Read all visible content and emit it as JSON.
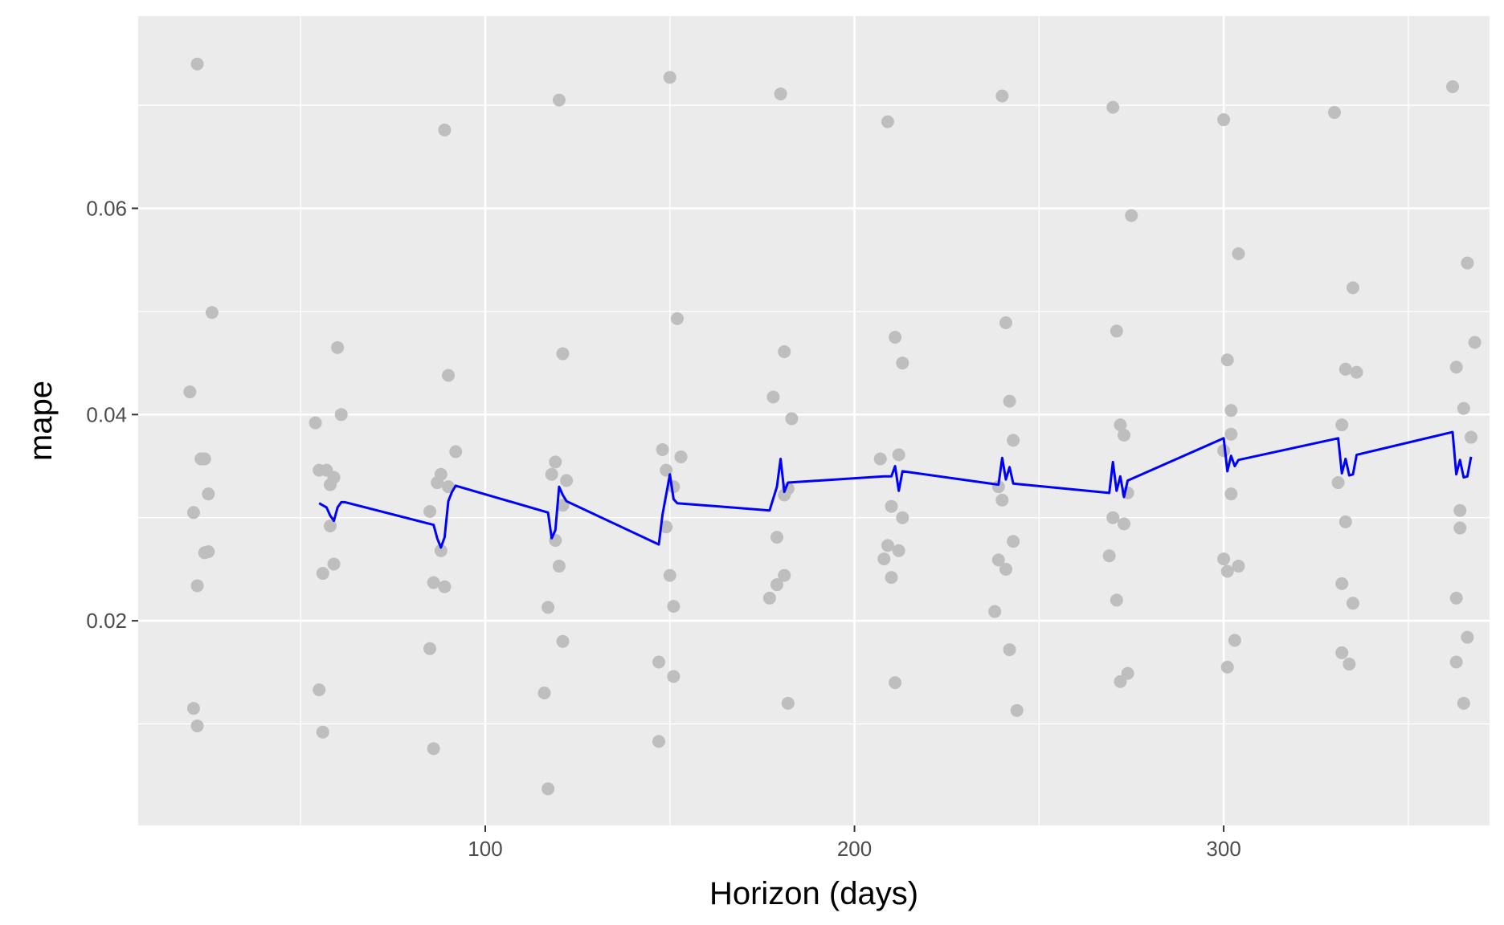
{
  "chart_data": {
    "type": "scatter",
    "title": "",
    "xlabel": "Horizon (days)",
    "ylabel": "mape",
    "xlim": [
      6,
      372
    ],
    "ylim": [
      0.00015,
      0.07865
    ],
    "x_ticks": [
      100,
      200,
      300
    ],
    "x_minor": [
      50,
      150,
      250,
      350
    ],
    "y_ticks": [
      0.02,
      0.04,
      0.06
    ],
    "y_minor": [
      0.01,
      0.03,
      0.05,
      0.07
    ],
    "x_tick_labels": [
      "100",
      "200",
      "300"
    ],
    "y_tick_labels": [
      "0.02",
      "0.04",
      "0.06"
    ],
    "grid": true,
    "legend": "none",
    "colors": {
      "panel": "#ebebeb",
      "grid": "#ffffff",
      "points": "#bebebe",
      "line": "#0000ff",
      "tick_text": "#4d4d4d",
      "title_text": "#000000"
    },
    "series": [
      {
        "kind": "points",
        "values": [
          [
            20,
            0.0422
          ],
          [
            21,
            0.0305
          ],
          [
            21,
            0.0115
          ],
          [
            22,
            0.074
          ],
          [
            22,
            0.0234
          ],
          [
            22,
            0.0098
          ],
          [
            23,
            0.0357
          ],
          [
            24,
            0.0357
          ],
          [
            24,
            0.0266
          ],
          [
            25,
            0.0323
          ],
          [
            25,
            0.0267
          ],
          [
            26,
            0.0499
          ],
          [
            54,
            0.0392
          ],
          [
            55,
            0.0346
          ],
          [
            55,
            0.0133
          ],
          [
            56,
            0.0246
          ],
          [
            56,
            0.0092
          ],
          [
            57,
            0.0346
          ],
          [
            58,
            0.0332
          ],
          [
            58,
            0.0292
          ],
          [
            59,
            0.0255
          ],
          [
            59,
            0.0339
          ],
          [
            60,
            0.0465
          ],
          [
            61,
            0.04
          ],
          [
            85,
            0.0306
          ],
          [
            85,
            0.0173
          ],
          [
            86,
            0.0237
          ],
          [
            86,
            0.0076
          ],
          [
            87,
            0.0334
          ],
          [
            88,
            0.0342
          ],
          [
            88,
            0.0268
          ],
          [
            89,
            0.0676
          ],
          [
            89,
            0.0233
          ],
          [
            90,
            0.033
          ],
          [
            90,
            0.0438
          ],
          [
            92,
            0.0364
          ],
          [
            116,
            0.013
          ],
          [
            117,
            0.0213
          ],
          [
            117,
            0.0037
          ],
          [
            118,
            0.0342
          ],
          [
            119,
            0.0354
          ],
          [
            119,
            0.0278
          ],
          [
            120,
            0.0705
          ],
          [
            120,
            0.0253
          ],
          [
            121,
            0.0312
          ],
          [
            121,
            0.018
          ],
          [
            121,
            0.0459
          ],
          [
            122,
            0.0336
          ],
          [
            147,
            0.016
          ],
          [
            147,
            0.0083
          ],
          [
            148,
            0.0366
          ],
          [
            149,
            0.0346
          ],
          [
            149,
            0.0291
          ],
          [
            150,
            0.0727
          ],
          [
            150,
            0.0244
          ],
          [
            151,
            0.033
          ],
          [
            151,
            0.0146
          ],
          [
            151,
            0.0214
          ],
          [
            152,
            0.0493
          ],
          [
            153,
            0.0359
          ],
          [
            177,
            0.0222
          ],
          [
            178,
            0.0417
          ],
          [
            179,
            0.0281
          ],
          [
            179,
            0.0235
          ],
          [
            180,
            0.0711
          ],
          [
            181,
            0.0244
          ],
          [
            181,
            0.0322
          ],
          [
            181,
            0.0461
          ],
          [
            182,
            0.012
          ],
          [
            182,
            0.0328
          ],
          [
            183,
            0.0396
          ],
          [
            207,
            0.0357
          ],
          [
            208,
            0.026
          ],
          [
            209,
            0.0273
          ],
          [
            209,
            0.0684
          ],
          [
            210,
            0.0242
          ],
          [
            210,
            0.0311
          ],
          [
            211,
            0.0475
          ],
          [
            211,
            0.014
          ],
          [
            212,
            0.0268
          ],
          [
            212,
            0.0361
          ],
          [
            213,
            0.03
          ],
          [
            213,
            0.045
          ],
          [
            238,
            0.0209
          ],
          [
            239,
            0.033
          ],
          [
            239,
            0.0259
          ],
          [
            240,
            0.0709
          ],
          [
            240,
            0.0317
          ],
          [
            241,
            0.0489
          ],
          [
            241,
            0.025
          ],
          [
            242,
            0.0172
          ],
          [
            242,
            0.0413
          ],
          [
            243,
            0.0375
          ],
          [
            243,
            0.0277
          ],
          [
            244,
            0.0113
          ],
          [
            269,
            0.0263
          ],
          [
            270,
            0.0698
          ],
          [
            270,
            0.03
          ],
          [
            271,
            0.0481
          ],
          [
            271,
            0.022
          ],
          [
            272,
            0.0141
          ],
          [
            272,
            0.039
          ],
          [
            273,
            0.0294
          ],
          [
            273,
            0.038
          ],
          [
            274,
            0.0149
          ],
          [
            274,
            0.0324
          ],
          [
            275,
            0.0593
          ],
          [
            300,
            0.0686
          ],
          [
            300,
            0.0365
          ],
          [
            300,
            0.026
          ],
          [
            301,
            0.0453
          ],
          [
            301,
            0.0248
          ],
          [
            301,
            0.0155
          ],
          [
            302,
            0.0404
          ],
          [
            302,
            0.0381
          ],
          [
            302,
            0.0323
          ],
          [
            303,
            0.0181
          ],
          [
            304,
            0.0253
          ],
          [
            304,
            0.0556
          ],
          [
            330,
            0.0693
          ],
          [
            331,
            0.0334
          ],
          [
            332,
            0.0236
          ],
          [
            332,
            0.039
          ],
          [
            332,
            0.0169
          ],
          [
            333,
            0.0296
          ],
          [
            333,
            0.0444
          ],
          [
            334,
            0.0158
          ],
          [
            335,
            0.0217
          ],
          [
            335,
            0.0523
          ],
          [
            336,
            0.0441
          ],
          [
            362,
            0.0718
          ],
          [
            363,
            0.0222
          ],
          [
            363,
            0.0446
          ],
          [
            363,
            0.016
          ],
          [
            364,
            0.0307
          ],
          [
            364,
            0.029
          ],
          [
            365,
            0.0406
          ],
          [
            365,
            0.012
          ],
          [
            366,
            0.0184
          ],
          [
            366,
            0.0547
          ],
          [
            367,
            0.0378
          ],
          [
            368,
            0.047
          ]
        ]
      },
      {
        "kind": "line",
        "values": [
          [
            55,
            0.0314
          ],
          [
            56,
            0.0312
          ],
          [
            57,
            0.031
          ],
          [
            58,
            0.0302
          ],
          [
            59,
            0.0297
          ],
          [
            60,
            0.031
          ],
          [
            61,
            0.0315
          ],
          [
            62,
            0.0315
          ],
          [
            86,
            0.0293
          ],
          [
            87,
            0.028
          ],
          [
            88,
            0.0271
          ],
          [
            89,
            0.0281
          ],
          [
            90,
            0.0316
          ],
          [
            91,
            0.0325
          ],
          [
            92,
            0.0331
          ],
          [
            117,
            0.0305
          ],
          [
            118,
            0.028
          ],
          [
            119,
            0.0288
          ],
          [
            120,
            0.033
          ],
          [
            121,
            0.0322
          ],
          [
            122,
            0.0316
          ],
          [
            147,
            0.0274
          ],
          [
            148,
            0.0303
          ],
          [
            150,
            0.0342
          ],
          [
            151,
            0.0318
          ],
          [
            152,
            0.0314
          ],
          [
            177,
            0.0307
          ],
          [
            179,
            0.033
          ],
          [
            180,
            0.0357
          ],
          [
            181,
            0.0325
          ],
          [
            182,
            0.0334
          ],
          [
            208,
            0.034
          ],
          [
            210,
            0.034
          ],
          [
            211,
            0.035
          ],
          [
            212,
            0.0326
          ],
          [
            213,
            0.0345
          ],
          [
            239,
            0.0332
          ],
          [
            240,
            0.0358
          ],
          [
            241,
            0.0337
          ],
          [
            242,
            0.0349
          ],
          [
            243,
            0.0333
          ],
          [
            269,
            0.0324
          ],
          [
            270,
            0.0354
          ],
          [
            271,
            0.0326
          ],
          [
            272,
            0.034
          ],
          [
            273,
            0.032
          ],
          [
            274,
            0.0336
          ],
          [
            300,
            0.0377
          ],
          [
            301,
            0.0345
          ],
          [
            302,
            0.036
          ],
          [
            303,
            0.035
          ],
          [
            304,
            0.0356
          ],
          [
            331,
            0.0377
          ],
          [
            332,
            0.0343
          ],
          [
            333,
            0.0357
          ],
          [
            334,
            0.0341
          ],
          [
            335,
            0.0342
          ],
          [
            336,
            0.0361
          ],
          [
            362,
            0.0383
          ],
          [
            363,
            0.0342
          ],
          [
            364,
            0.0356
          ],
          [
            365,
            0.0339
          ],
          [
            366,
            0.034
          ],
          [
            367,
            0.0359
          ]
        ]
      }
    ]
  }
}
